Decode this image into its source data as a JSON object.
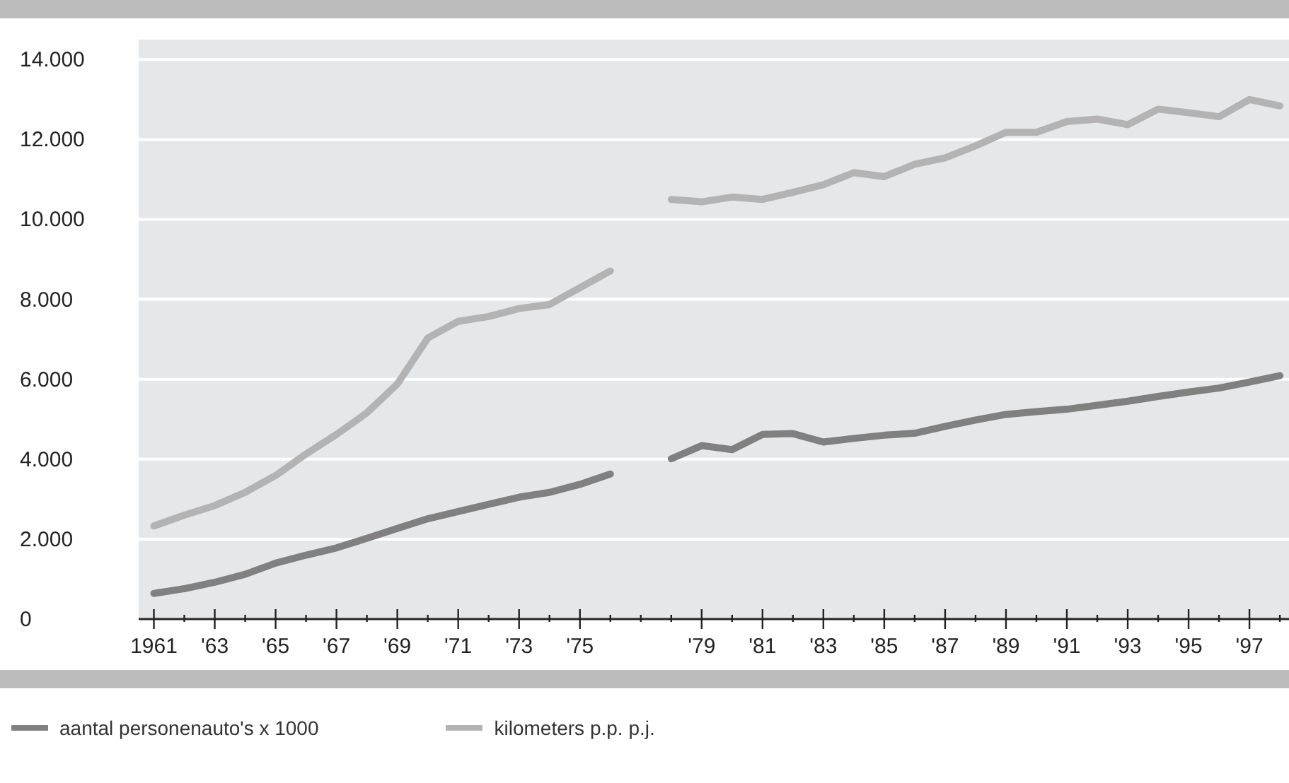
{
  "chart_data": {
    "type": "line",
    "x": [
      1961,
      1962,
      1963,
      1964,
      1965,
      1966,
      1967,
      1968,
      1969,
      1970,
      1971,
      1972,
      1973,
      1974,
      1975,
      1976,
      1977,
      1978,
      1979,
      1980,
      1981,
      1982,
      1983,
      1984,
      1985,
      1986,
      1987,
      1988,
      1989,
      1990,
      1991,
      1992,
      1993,
      1994,
      1995,
      1996,
      1997,
      1998
    ],
    "series": [
      {
        "name": "aantal personenauto's x 1000",
        "color": "#808080",
        "values": [
          640,
          760,
          920,
          1120,
          1400,
          1600,
          1780,
          2020,
          2270,
          2510,
          2690,
          2870,
          3050,
          3170,
          3370,
          3630,
          null,
          4010,
          4340,
          4240,
          4620,
          4640,
          4430,
          4520,
          4600,
          4650,
          4820,
          4980,
          5120,
          5190,
          5250,
          5350,
          5450,
          5570,
          5680,
          5780,
          5930,
          6090
        ]
      },
      {
        "name": "kilometers p.p. p.j.",
        "color": "#b3b3b3",
        "values": [
          2330,
          2600,
          2840,
          3170,
          3590,
          4130,
          4620,
          5160,
          5880,
          7030,
          7450,
          7570,
          7770,
          7870,
          8290,
          8710,
          null,
          10500,
          10440,
          10560,
          10500,
          10680,
          10870,
          11170,
          11070,
          11380,
          11540,
          11840,
          12180,
          12180,
          12450,
          12510,
          12370,
          12760,
          12670,
          12570,
          13000,
          12840
        ]
      }
    ],
    "xlim": [
      1960.5,
      1998.3
    ],
    "xticks": [
      {
        "value": 1961,
        "label": "1961"
      },
      {
        "value": 1962,
        "label": null
      },
      {
        "value": 1963,
        "label": "'63"
      },
      {
        "value": 1964,
        "label": null
      },
      {
        "value": 1965,
        "label": "'65"
      },
      {
        "value": 1966,
        "label": null
      },
      {
        "value": 1967,
        "label": "'67"
      },
      {
        "value": 1968,
        "label": null
      },
      {
        "value": 1969,
        "label": "'69"
      },
      {
        "value": 1970,
        "label": null
      },
      {
        "value": 1971,
        "label": "'71"
      },
      {
        "value": 1972,
        "label": null
      },
      {
        "value": 1973,
        "label": "'73"
      },
      {
        "value": 1974,
        "label": null
      },
      {
        "value": 1975,
        "label": "'75"
      },
      {
        "value": 1976,
        "label": null
      },
      {
        "value": 1977,
        "label": null
      },
      {
        "value": 1978,
        "label": null
      },
      {
        "value": 1979,
        "label": "'79"
      },
      {
        "value": 1980,
        "label": null
      },
      {
        "value": 1981,
        "label": "'81"
      },
      {
        "value": 1982,
        "label": null
      },
      {
        "value": 1983,
        "label": "'83"
      },
      {
        "value": 1984,
        "label": null
      },
      {
        "value": 1985,
        "label": "'85"
      },
      {
        "value": 1986,
        "label": null
      },
      {
        "value": 1987,
        "label": "'87"
      },
      {
        "value": 1988,
        "label": null
      },
      {
        "value": 1989,
        "label": "'89"
      },
      {
        "value": 1990,
        "label": null
      },
      {
        "value": 1991,
        "label": "'91"
      },
      {
        "value": 1992,
        "label": null
      },
      {
        "value": 1993,
        "label": "'93"
      },
      {
        "value": 1994,
        "label": null
      },
      {
        "value": 1995,
        "label": "'95"
      },
      {
        "value": 1996,
        "label": null
      },
      {
        "value": 1997,
        "label": "'97"
      },
      {
        "value": 1998,
        "label": null
      }
    ],
    "ylim": [
      0,
      14500
    ],
    "yticks": [
      0,
      {
        "value": 2000,
        "label": "2.000"
      },
      {
        "value": 4000,
        "label": "4.000"
      },
      {
        "value": 6000,
        "label": "6.000"
      },
      {
        "value": 8000,
        "label": "8.000"
      },
      {
        "value": 10000,
        "label": "10.000"
      },
      {
        "value": 12000,
        "label": "12.000"
      },
      {
        "value": 14000,
        "label": "14.000"
      }
    ],
    "grid": "y",
    "legend": "bottom left",
    "marker": "none",
    "line_style": "solid"
  }
}
